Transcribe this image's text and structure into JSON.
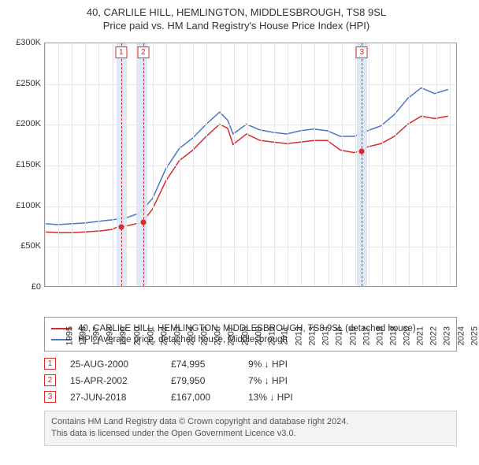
{
  "title_line1": "40, CARLILE HILL, HEMLINGTON, MIDDLESBROUGH, TS8 9SL",
  "title_line2": "Price paid vs. HM Land Registry's House Price Index (HPI)",
  "chart": {
    "type": "line",
    "background_color": "#ffffff",
    "grid_color": "#e6e6e6",
    "border_color": "#999999",
    "ylim": [
      0,
      300000
    ],
    "ytick_step": 50000,
    "ytick_labels": [
      "£0",
      "£50K",
      "£100K",
      "£150K",
      "£200K",
      "£250K",
      "£300K"
    ],
    "x_years": [
      1995,
      1996,
      1997,
      1998,
      1999,
      2000,
      2001,
      2002,
      2003,
      2004,
      2005,
      2006,
      2007,
      2008,
      2009,
      2010,
      2011,
      2012,
      2013,
      2014,
      2015,
      2016,
      2017,
      2018,
      2019,
      2020,
      2021,
      2022,
      2023,
      2024,
      2025
    ],
    "xlim_year": [
      1995,
      2025.6
    ],
    "vbands": [
      {
        "from": 2000.3,
        "to": 2001.0,
        "color": "#dbe6f5"
      },
      {
        "from": 2001.8,
        "to": 2002.6,
        "color": "#dbe6f5"
      },
      {
        "from": 2018.1,
        "to": 2018.9,
        "color": "#dbe6f5"
      }
    ],
    "vdash_color": "#d82a2a",
    "markers": [
      {
        "n": "1",
        "year": 2000.65,
        "price": 74995
      },
      {
        "n": "2",
        "year": 2002.29,
        "price": 79950
      },
      {
        "n": "3",
        "year": 2018.49,
        "price": 167000
      }
    ],
    "marker_dot_color": "#d82a2a",
    "series": [
      {
        "name": "property",
        "label": "40, CARLILE HILL, HEMLINGTON, MIDDLESBROUGH, TS8 9SL (detached house)",
        "color": "#d82a2a",
        "line_width": 1.5,
        "points": [
          [
            1995,
            67000
          ],
          [
            1996,
            66000
          ],
          [
            1997,
            66000
          ],
          [
            1998,
            67000
          ],
          [
            1999,
            68000
          ],
          [
            2000,
            70000
          ],
          [
            2000.65,
            74995
          ],
          [
            2001,
            74000
          ],
          [
            2002,
            78000
          ],
          [
            2002.29,
            79950
          ],
          [
            2003,
            95000
          ],
          [
            2004,
            130000
          ],
          [
            2005,
            155000
          ],
          [
            2006,
            168000
          ],
          [
            2007,
            185000
          ],
          [
            2008,
            200000
          ],
          [
            2008.6,
            195000
          ],
          [
            2009,
            175000
          ],
          [
            2010,
            188000
          ],
          [
            2011,
            180000
          ],
          [
            2012,
            178000
          ],
          [
            2013,
            176000
          ],
          [
            2014,
            178000
          ],
          [
            2015,
            180000
          ],
          [
            2016,
            180000
          ],
          [
            2017,
            168000
          ],
          [
            2018,
            165000
          ],
          [
            2018.49,
            167000
          ],
          [
            2019,
            172000
          ],
          [
            2020,
            176000
          ],
          [
            2021,
            185000
          ],
          [
            2022,
            200000
          ],
          [
            2023,
            210000
          ],
          [
            2024,
            207000
          ],
          [
            2025,
            210000
          ]
        ]
      },
      {
        "name": "hpi",
        "label": "HPI: Average price, detached house, Middlesbrough",
        "color": "#4a76c7",
        "line_width": 1.5,
        "points": [
          [
            1995,
            77000
          ],
          [
            1996,
            76000
          ],
          [
            1997,
            77000
          ],
          [
            1998,
            78000
          ],
          [
            1999,
            80000
          ],
          [
            2000,
            82000
          ],
          [
            2001,
            84000
          ],
          [
            2002,
            90000
          ],
          [
            2003,
            108000
          ],
          [
            2004,
            145000
          ],
          [
            2005,
            170000
          ],
          [
            2006,
            183000
          ],
          [
            2007,
            200000
          ],
          [
            2008,
            215000
          ],
          [
            2008.6,
            205000
          ],
          [
            2009,
            188000
          ],
          [
            2010,
            200000
          ],
          [
            2011,
            193000
          ],
          [
            2012,
            190000
          ],
          [
            2013,
            188000
          ],
          [
            2014,
            192000
          ],
          [
            2015,
            194000
          ],
          [
            2016,
            192000
          ],
          [
            2017,
            185000
          ],
          [
            2018,
            185000
          ],
          [
            2019,
            192000
          ],
          [
            2020,
            198000
          ],
          [
            2021,
            212000
          ],
          [
            2022,
            232000
          ],
          [
            2023,
            245000
          ],
          [
            2024,
            238000
          ],
          [
            2025,
            243000
          ]
        ]
      }
    ]
  },
  "legend": {
    "border_color": "#999999"
  },
  "transactions": [
    {
      "n": "1",
      "date": "25-AUG-2000",
      "price": "£74,995",
      "diff": "9% ↓ HPI"
    },
    {
      "n": "2",
      "date": "15-APR-2002",
      "price": "£79,950",
      "diff": "7% ↓ HPI"
    },
    {
      "n": "3",
      "date": "27-JUN-2018",
      "price": "£167,000",
      "diff": "13% ↓ HPI"
    }
  ],
  "footer": {
    "line1": "Contains HM Land Registry data © Crown copyright and database right 2024.",
    "line2": "This data is licensed under the Open Government Licence v3.0."
  }
}
